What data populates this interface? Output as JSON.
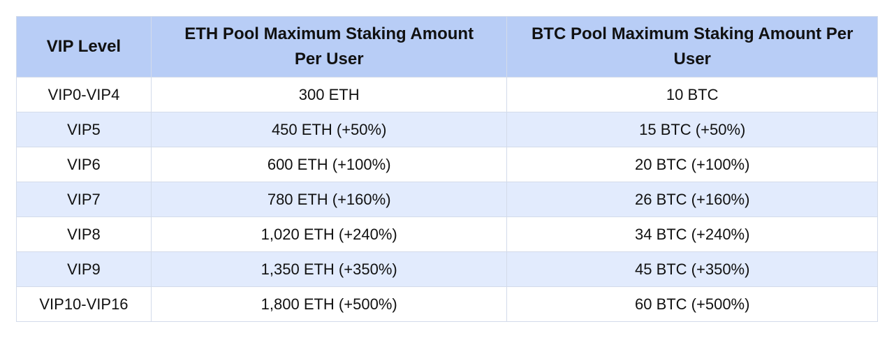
{
  "table": {
    "header": [
      "VIP Level",
      "ETH Pool Maximum Staking Amount Per User",
      "BTC Pool Maximum Staking Amount Per User"
    ],
    "rows": [
      [
        "VIP0-VIP4",
        "300 ETH",
        "10 BTC"
      ],
      [
        "VIP5",
        "450 ETH (+50%)",
        "15 BTC (+50%)"
      ],
      [
        "VIP6",
        "600 ETH (+100%)",
        "20 BTC (+100%)"
      ],
      [
        "VIP7",
        "780 ETH (+160%)",
        "26 BTC (+160%)"
      ],
      [
        "VIP8",
        "1,020 ETH (+240%)",
        "34 BTC (+240%)"
      ],
      [
        "VIP9",
        "1,350 ETH (+350%)",
        "45 BTC (+350%)"
      ],
      [
        "VIP10-VIP16",
        "1,800 ETH (+500%)",
        "60 BTC (+500%)"
      ]
    ]
  }
}
